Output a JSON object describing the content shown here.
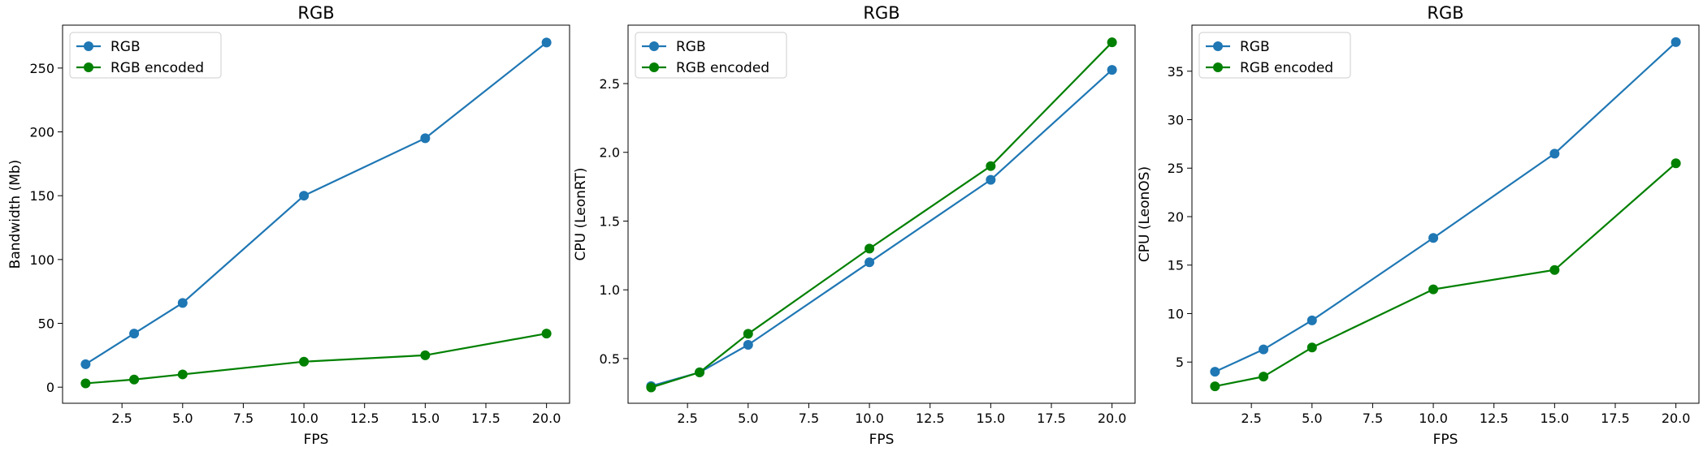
{
  "chart_data": [
    {
      "type": "line",
      "title": "RGB",
      "xlabel": "FPS",
      "ylabel": "Bandwidth (Mb)",
      "xlim": [
        0.05,
        20.95
      ],
      "ylim": [
        -12.6,
        283.6
      ],
      "xticks": [
        "2.5",
        "5.0",
        "7.5",
        "10.0",
        "12.5",
        "15.0",
        "17.5",
        "20.0"
      ],
      "yticks": [
        "0",
        "50",
        "100",
        "150",
        "200",
        "250"
      ],
      "legend": "top-left",
      "x": [
        1,
        3,
        5,
        10,
        15,
        20
      ],
      "series": [
        {
          "name": "RGB",
          "color": "#1f77b4",
          "values": [
            18,
            42,
            66,
            150,
            195,
            270
          ]
        },
        {
          "name": "RGB encoded",
          "color": "#008000",
          "values": [
            3,
            6,
            10,
            20,
            25,
            42
          ]
        }
      ]
    },
    {
      "type": "line",
      "title": "RGB",
      "xlabel": "FPS",
      "ylabel": "CPU (LeonRT)",
      "xlim": [
        0.05,
        20.95
      ],
      "ylim": [
        0.175,
        2.925
      ],
      "xticks": [
        "2.5",
        "5.0",
        "7.5",
        "10.0",
        "12.5",
        "15.0",
        "17.5",
        "20.0"
      ],
      "yticks": [
        "0.5",
        "1.0",
        "1.5",
        "2.0",
        "2.5"
      ],
      "legend": "top-left",
      "x": [
        1,
        3,
        5,
        10,
        15,
        20
      ],
      "series": [
        {
          "name": "RGB",
          "color": "#1f77b4",
          "values": [
            0.3,
            0.4,
            0.6,
            1.2,
            1.8,
            2.6
          ]
        },
        {
          "name": "RGB encoded",
          "color": "#008000",
          "values": [
            0.29,
            0.4,
            0.68,
            1.3,
            1.9,
            2.8
          ]
        }
      ]
    },
    {
      "type": "line",
      "title": "RGB",
      "xlabel": "FPS",
      "ylabel": "CPU (LeonOS)",
      "xlim": [
        0.05,
        20.95
      ],
      "ylim": [
        0.75,
        39.75
      ],
      "xticks": [
        "2.5",
        "5.0",
        "7.5",
        "10.0",
        "12.5",
        "15.0",
        "17.5",
        "20.0"
      ],
      "yticks": [
        "5",
        "10",
        "15",
        "20",
        "25",
        "30",
        "35"
      ],
      "legend": "top-left",
      "x": [
        1,
        3,
        5,
        10,
        15,
        20
      ],
      "series": [
        {
          "name": "RGB",
          "color": "#1f77b4",
          "values": [
            4,
            6.3,
            9.3,
            17.8,
            26.5,
            38
          ]
        },
        {
          "name": "RGB encoded",
          "color": "#008000",
          "values": [
            2.5,
            3.5,
            6.5,
            12.5,
            14.5,
            25.5
          ]
        }
      ]
    }
  ]
}
